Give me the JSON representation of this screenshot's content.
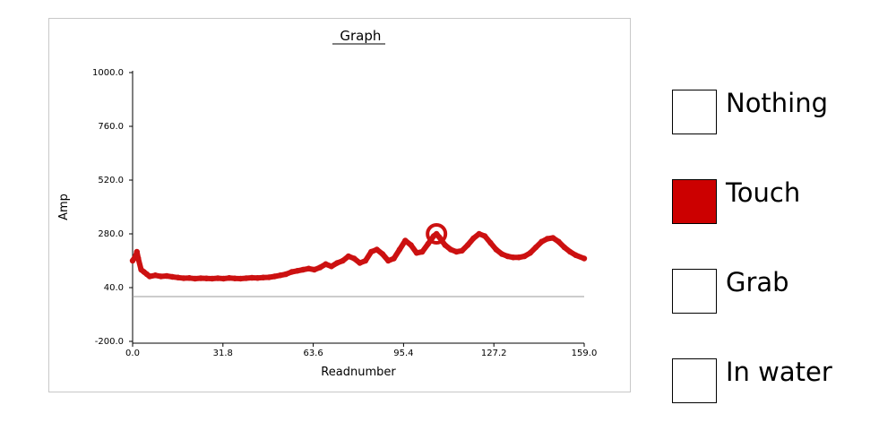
{
  "chart_data": {
    "type": "line",
    "title": " Graph",
    "xlabel": "Readnumber",
    "ylabel": "Amp",
    "xlim": [
      0,
      159
    ],
    "ylim": [
      -200,
      1000
    ],
    "x_ticks": [
      "0.0",
      "31.8",
      "63.6",
      "95.4",
      "127.2",
      "159.0"
    ],
    "y_ticks": [
      "1000.0",
      "760.0",
      "520.0",
      "280.0",
      "40.0",
      "-200.0"
    ],
    "reference_line_y": 0,
    "grid": false,
    "line_color": "#cc1111",
    "highlight": {
      "x": 107,
      "y": 280
    },
    "series": [
      {
        "x": [
          0,
          1,
          1.5,
          2,
          3,
          4,
          5,
          6,
          8,
          10,
          12,
          14,
          16,
          18,
          20,
          22,
          24,
          26,
          28,
          30,
          32,
          34,
          36,
          38,
          40,
          42,
          44,
          46,
          48,
          50,
          52,
          54,
          56,
          58,
          60,
          62,
          64,
          66,
          68,
          70,
          72,
          74,
          76,
          78,
          80,
          82,
          84,
          86,
          88,
          90,
          92,
          94,
          96,
          98,
          100,
          102,
          104,
          106,
          107,
          108,
          110,
          112,
          114,
          116,
          118,
          120,
          122,
          124,
          126,
          128,
          130,
          132,
          134,
          136,
          138,
          140,
          142,
          144,
          146,
          148,
          150,
          152,
          154,
          156,
          159
        ],
        "y": [
          160,
          180,
          200,
          170,
          120,
          110,
          100,
          90,
          95,
          90,
          92,
          88,
          85,
          82,
          83,
          80,
          82,
          81,
          80,
          82,
          80,
          83,
          81,
          80,
          82,
          84,
          83,
          85,
          86,
          90,
          95,
          100,
          110,
          115,
          120,
          125,
          120,
          130,
          145,
          135,
          150,
          160,
          180,
          170,
          150,
          160,
          200,
          210,
          190,
          160,
          170,
          210,
          250,
          230,
          195,
          200,
          235,
          270,
          280,
          265,
          230,
          210,
          200,
          205,
          230,
          260,
          280,
          270,
          240,
          210,
          190,
          180,
          175,
          175,
          180,
          195,
          220,
          245,
          258,
          262,
          245,
          220,
          200,
          185,
          170
        ]
      }
    ]
  },
  "legend": {
    "items": [
      {
        "label": "Nothing",
        "color": "#ffffff"
      },
      {
        "label": "Touch",
        "color": "#cc0000"
      },
      {
        "label": "Grab",
        "color": "#ffffff"
      },
      {
        "label": "In water",
        "color": "#ffffff"
      }
    ]
  }
}
